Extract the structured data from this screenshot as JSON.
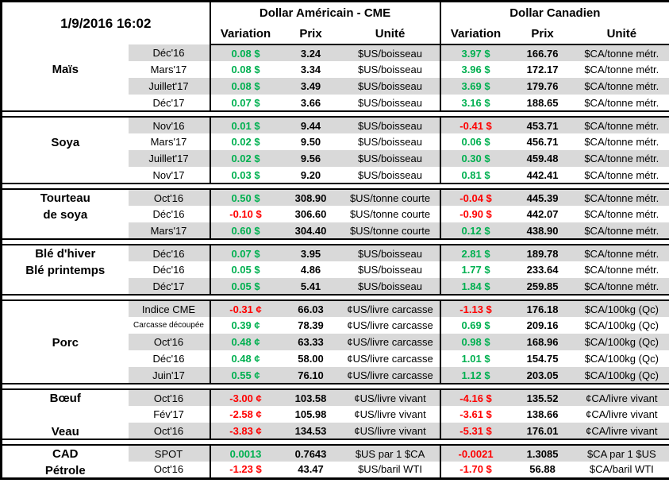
{
  "meta": {
    "timestamp": "1/9/2016 16:02"
  },
  "header": {
    "us_group": "Dollar Américain - CME",
    "ca_group": "Dollar Canadien",
    "columns": [
      "Variation",
      "Prix",
      "Unité"
    ]
  },
  "colors": {
    "positive": "#00B050",
    "negative": "#FF0000",
    "stripe": "#D9D9D9"
  },
  "groups": [
    {
      "labels": [
        {
          "text": "Maïs",
          "row": 1
        }
      ],
      "rows": [
        {
          "contract": "Déc'16",
          "us": {
            "variation": "0.08 $",
            "prix": "3.24",
            "unite": "$US/boisseau"
          },
          "ca": {
            "variation": "3.97 $",
            "prix": "166.76",
            "unite": "$CA/tonne métr."
          }
        },
        {
          "contract": "Mars'17",
          "us": {
            "variation": "0.08 $",
            "prix": "3.34",
            "unite": "$US/boisseau"
          },
          "ca": {
            "variation": "3.96 $",
            "prix": "172.17",
            "unite": "$CA/tonne métr."
          }
        },
        {
          "contract": "Juillet'17",
          "us": {
            "variation": "0.08 $",
            "prix": "3.49",
            "unite": "$US/boisseau"
          },
          "ca": {
            "variation": "3.69 $",
            "prix": "179.76",
            "unite": "$CA/tonne métr."
          }
        },
        {
          "contract": "Déc'17",
          "us": {
            "variation": "0.07 $",
            "prix": "3.66",
            "unite": "$US/boisseau"
          },
          "ca": {
            "variation": "3.16 $",
            "prix": "188.65",
            "unite": "$CA/tonne métr."
          }
        }
      ]
    },
    {
      "labels": [
        {
          "text": "Soya",
          "row": 1
        }
      ],
      "rows": [
        {
          "contract": "Nov'16",
          "us": {
            "variation": "0.01 $",
            "prix": "9.44",
            "unite": "$US/boisseau"
          },
          "ca": {
            "variation": "-0.41 $",
            "prix": "453.71",
            "unite": "$CA/tonne métr."
          }
        },
        {
          "contract": "Mars'17",
          "us": {
            "variation": "0.02 $",
            "prix": "9.50",
            "unite": "$US/boisseau"
          },
          "ca": {
            "variation": "0.06 $",
            "prix": "456.71",
            "unite": "$CA/tonne métr."
          }
        },
        {
          "contract": "Juillet'17",
          "us": {
            "variation": "0.02 $",
            "prix": "9.56",
            "unite": "$US/boisseau"
          },
          "ca": {
            "variation": "0.30 $",
            "prix": "459.48",
            "unite": "$CA/tonne métr."
          }
        },
        {
          "contract": "Nov'17",
          "us": {
            "variation": "0.03 $",
            "prix": "9.20",
            "unite": "$US/boisseau"
          },
          "ca": {
            "variation": "0.81 $",
            "prix": "442.41",
            "unite": "$CA/tonne métr."
          }
        }
      ]
    },
    {
      "labels": [
        {
          "text": "Tourteau",
          "row": 0
        },
        {
          "text": "de soya",
          "row": 1
        }
      ],
      "rows": [
        {
          "contract": "Oct'16",
          "us": {
            "variation": "0.50 $",
            "prix": "308.90",
            "unite": "$US/tonne courte"
          },
          "ca": {
            "variation": "-0.04 $",
            "prix": "445.39",
            "unite": "$CA/tonne métr."
          }
        },
        {
          "contract": "Déc'16",
          "us": {
            "variation": "-0.10 $",
            "prix": "306.60",
            "unite": "$US/tonne courte"
          },
          "ca": {
            "variation": "-0.90 $",
            "prix": "442.07",
            "unite": "$CA/tonne métr."
          }
        },
        {
          "contract": "Mars'17",
          "us": {
            "variation": "0.60 $",
            "prix": "304.40",
            "unite": "$US/tonne courte"
          },
          "ca": {
            "variation": "0.12 $",
            "prix": "438.90",
            "unite": "$CA/tonne métr."
          }
        }
      ]
    },
    {
      "labels": [
        {
          "text": "Blé d'hiver",
          "row": 0
        },
        {
          "text": "Blé printemps",
          "row": 1
        }
      ],
      "rows": [
        {
          "contract": "Déc'16",
          "us": {
            "variation": "0.07 $",
            "prix": "3.95",
            "unite": "$US/boisseau"
          },
          "ca": {
            "variation": "2.81 $",
            "prix": "189.78",
            "unite": "$CA/tonne métr."
          }
        },
        {
          "contract": "Déc'16",
          "us": {
            "variation": "0.05 $",
            "prix": "4.86",
            "unite": "$US/boisseau"
          },
          "ca": {
            "variation": "1.77 $",
            "prix": "233.64",
            "unite": "$CA/tonne métr."
          }
        },
        {
          "contract": "Déc'17",
          "us": {
            "variation": "0.05 $",
            "prix": "5.41",
            "unite": "$US/boisseau"
          },
          "ca": {
            "variation": "1.84 $",
            "prix": "259.85",
            "unite": "$CA/tonne métr."
          }
        }
      ]
    },
    {
      "labels": [
        {
          "text": "Porc",
          "row": 2
        }
      ],
      "rows": [
        {
          "contract": "Indice CME",
          "us": {
            "variation": "-0.31 ¢",
            "prix": "66.03",
            "unite": "¢US/livre carcasse"
          },
          "ca": {
            "variation": "-1.13 $",
            "prix": "176.18",
            "unite": "$CA/100kg (Qc)"
          }
        },
        {
          "contract": "Carcasse découpée",
          "small": true,
          "us": {
            "variation": "0.39 ¢",
            "prix": "78.39",
            "unite": "¢US/livre carcasse"
          },
          "ca": {
            "variation": "0.69 $",
            "prix": "209.16",
            "unite": "$CA/100kg (Qc)"
          }
        },
        {
          "contract": "Oct'16",
          "us": {
            "variation": "0.48 ¢",
            "prix": "63.33",
            "unite": "¢US/livre carcasse"
          },
          "ca": {
            "variation": "0.98 $",
            "prix": "168.96",
            "unite": "$CA/100kg (Qc)"
          }
        },
        {
          "contract": "Déc'16",
          "us": {
            "variation": "0.48 ¢",
            "prix": "58.00",
            "unite": "¢US/livre carcasse"
          },
          "ca": {
            "variation": "1.01 $",
            "prix": "154.75",
            "unite": "$CA/100kg (Qc)"
          }
        },
        {
          "contract": "Juin'17",
          "us": {
            "variation": "0.55 ¢",
            "prix": "76.10",
            "unite": "¢US/livre carcasse"
          },
          "ca": {
            "variation": "1.12 $",
            "prix": "203.05",
            "unite": "$CA/100kg (Qc)"
          }
        }
      ]
    },
    {
      "labels": [
        {
          "text": "Bœuf",
          "row": 0
        },
        {
          "text": "Veau",
          "row": 2
        }
      ],
      "rows": [
        {
          "contract": "Oct'16",
          "us": {
            "variation": "-3.00 ¢",
            "prix": "103.58",
            "unite": "¢US/livre vivant"
          },
          "ca": {
            "variation": "-4.16 $",
            "prix": "135.52",
            "unite": "¢CA/livre vivant"
          }
        },
        {
          "contract": "Fév'17",
          "us": {
            "variation": "-2.58 ¢",
            "prix": "105.98",
            "unite": "¢US/livre vivant"
          },
          "ca": {
            "variation": "-3.61 $",
            "prix": "138.66",
            "unite": "¢CA/livre vivant"
          }
        },
        {
          "contract": "Oct'16",
          "us": {
            "variation": "-3.83 ¢",
            "prix": "134.53",
            "unite": "¢US/livre vivant"
          },
          "ca": {
            "variation": "-5.31 $",
            "prix": "176.01",
            "unite": "¢CA/livre vivant"
          }
        }
      ]
    },
    {
      "labels": [
        {
          "text": "CAD",
          "row": 0
        },
        {
          "text": "Pétrole",
          "row": 1
        }
      ],
      "rows": [
        {
          "contract": "SPOT",
          "us": {
            "variation": "0.0013",
            "prix": "0.7643",
            "unite": "$US par 1 $CA"
          },
          "ca": {
            "variation": "-0.0021",
            "prix": "1.3085",
            "unite": "$CA par 1 $US"
          }
        },
        {
          "contract": "Oct'16",
          "us": {
            "variation": "-1.23 $",
            "prix": "43.47",
            "unite": "$US/baril WTI"
          },
          "ca": {
            "variation": "-1.70 $",
            "prix": "56.88",
            "unite": "$CA/baril WTI"
          }
        }
      ]
    }
  ]
}
